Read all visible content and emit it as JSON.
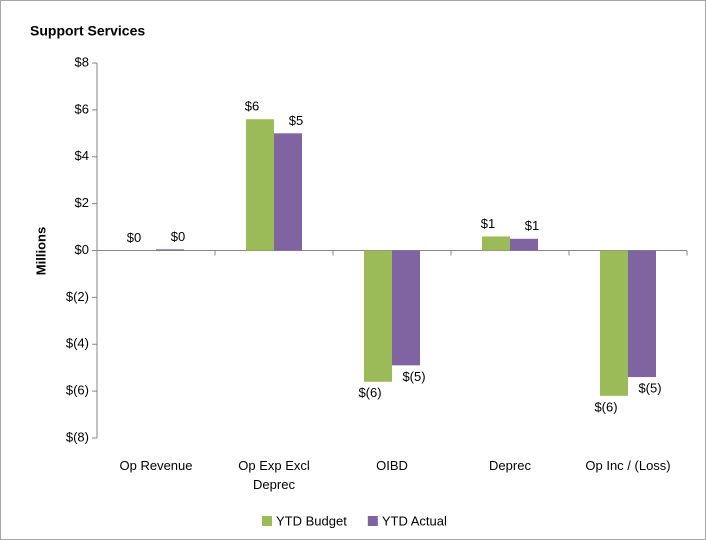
{
  "chart_data": {
    "type": "bar",
    "title": "Support Services",
    "y_label": "Millions",
    "categories": [
      "Op Revenue",
      "Op Exp Excl Deprec",
      "OIBD",
      "Deprec",
      "Op Inc / (Loss)"
    ],
    "series": [
      {
        "name": "YTD Budget",
        "color": "#9bbb59",
        "values": [
          0,
          5.6,
          -5.6,
          0.6,
          -6.2
        ],
        "value_labels": [
          "$0",
          "$6",
          "$(6)",
          "$1",
          "$(6)"
        ]
      },
      {
        "name": "YTD Actual",
        "color": "#8064a2",
        "values": [
          0.05,
          5.0,
          -4.9,
          0.5,
          -5.4
        ],
        "value_labels": [
          "$0",
          "$5",
          "$(5)",
          "$1",
          "$(5)"
        ]
      }
    ],
    "ylim": [
      -8,
      8
    ],
    "yticks": [
      {
        "value": -8,
        "label": "$(8)"
      },
      {
        "value": -6,
        "label": "$(6)"
      },
      {
        "value": -4,
        "label": "$(4)"
      },
      {
        "value": -2,
        "label": "$(2)"
      },
      {
        "value": 0,
        "label": "$0"
      },
      {
        "value": 2,
        "label": "$2"
      },
      {
        "value": 4,
        "label": "$4"
      },
      {
        "value": 6,
        "label": "$6"
      },
      {
        "value": 8,
        "label": "$8"
      }
    ],
    "grid": false,
    "legend": "bottom"
  }
}
